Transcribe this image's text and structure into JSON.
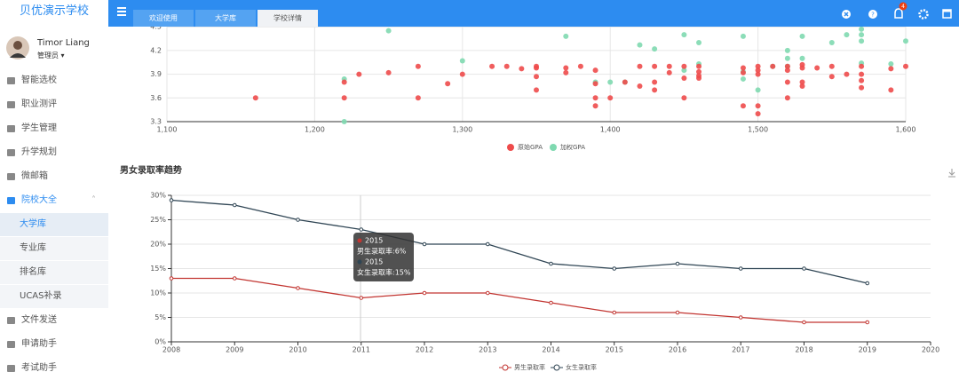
{
  "sidebar": {
    "logo": "贝优演示学校",
    "user": {
      "name": "Timor Liang",
      "role": "管理员"
    },
    "menu": [
      "智能选校",
      "职业测评",
      "学生管理",
      "升学规划",
      "微邮箱",
      "院校大全"
    ],
    "submenu": [
      "大学库",
      "专业库",
      "排名库",
      "UCAS补录"
    ],
    "menu_after": [
      "文件发送",
      "申请助手",
      "考试助手"
    ]
  },
  "header": {
    "tabs": [
      "欢迎使用",
      "大学库",
      "学校详情"
    ],
    "badge": "4"
  },
  "chart_data": [
    {
      "type": "scatter",
      "xlim": [
        1100,
        1600
      ],
      "ylim": [
        3.3,
        4.5
      ],
      "xticks": [
        {
          "value": 1100,
          "label": "1,100"
        },
        {
          "value": 1200,
          "label": "1,200"
        },
        {
          "value": 1300,
          "label": "1,300"
        },
        {
          "value": 1400,
          "label": "1,400"
        },
        {
          "value": 1500,
          "label": "1,500"
        },
        {
          "value": 1600,
          "label": "1,600"
        }
      ],
      "yticks": [
        3.3,
        3.6,
        3.9,
        4.2,
        4.5
      ],
      "grid": true,
      "legend": "bottom",
      "series": [
        {
          "name": "原始GPA",
          "color": "#ee4b4b",
          "x": [
            1160,
            1220,
            1220,
            1230,
            1250,
            1270,
            1270,
            1290,
            1300,
            1320,
            1330,
            1340,
            1350,
            1350,
            1350,
            1350,
            1370,
            1370,
            1380,
            1390,
            1390,
            1390,
            1390,
            1400,
            1410,
            1420,
            1420,
            1430,
            1430,
            1430,
            1440,
            1440,
            1450,
            1450,
            1450,
            1460,
            1460,
            1460,
            1460,
            1490,
            1490,
            1490,
            1500,
            1500,
            1500,
            1500,
            1500,
            1510,
            1520,
            1520,
            1520,
            1520,
            1530,
            1530,
            1530,
            1530,
            1540,
            1550,
            1550,
            1560,
            1570,
            1570,
            1570,
            1570,
            1590,
            1590,
            1600
          ],
          "values": [
            3.6,
            3.8,
            3.6,
            3.9,
            3.92,
            4.0,
            3.6,
            3.78,
            3.9,
            4.0,
            4.0,
            3.97,
            4.0,
            3.98,
            3.87,
            3.7,
            3.98,
            3.92,
            4.0,
            3.95,
            3.78,
            3.6,
            3.5,
            3.6,
            3.8,
            4.0,
            3.75,
            4.0,
            3.8,
            3.7,
            4.0,
            3.92,
            4.0,
            3.85,
            3.6,
            4.0,
            3.93,
            3.88,
            3.85,
            3.98,
            3.92,
            3.5,
            4.0,
            3.95,
            3.9,
            3.5,
            3.4,
            4.0,
            4.0,
            3.95,
            3.8,
            3.6,
            4.02,
            3.98,
            3.8,
            3.75,
            3.98,
            4.0,
            3.87,
            3.9,
            4.0,
            3.9,
            3.82,
            3.73,
            3.97,
            3.7,
            4.0
          ]
        },
        {
          "name": "加权GPA",
          "color": "#7fd9b0",
          "x": [
            1220,
            1220,
            1250,
            1300,
            1370,
            1390,
            1400,
            1410,
            1420,
            1430,
            1450,
            1450,
            1460,
            1460,
            1490,
            1490,
            1490,
            1500,
            1510,
            1520,
            1520,
            1520,
            1530,
            1530,
            1550,
            1560,
            1570,
            1570,
            1570,
            1570,
            1590,
            1600
          ],
          "values": [
            3.84,
            3.3,
            4.45,
            4.07,
            4.38,
            3.8,
            3.8,
            3.8,
            4.27,
            4.22,
            4.4,
            3.95,
            4.3,
            4.03,
            4.38,
            3.93,
            3.84,
            3.7,
            4.0,
            4.2,
            4.1,
            4.0,
            4.38,
            4.1,
            4.3,
            4.4,
            4.47,
            4.4,
            4.32,
            4.04,
            4.03,
            4.32
          ]
        }
      ]
    },
    {
      "type": "line",
      "title": "男女录取率趋势",
      "x": [
        2008,
        2009,
        2010,
        2011,
        2012,
        2013,
        2014,
        2015,
        2016,
        2017,
        2018,
        2019
      ],
      "xlim": [
        2008,
        2020
      ],
      "xticks": [
        2008,
        2009,
        2010,
        2011,
        2012,
        2013,
        2014,
        2015,
        2016,
        2017,
        2018,
        2019,
        2020
      ],
      "ylim": [
        0,
        30
      ],
      "yticks": [
        {
          "value": 0,
          "label": "0%"
        },
        {
          "value": 5,
          "label": "5%"
        },
        {
          "value": 10,
          "label": "10%"
        },
        {
          "value": 15,
          "label": "15%"
        },
        {
          "value": 20,
          "label": "20%"
        },
        {
          "value": 25,
          "label": "25%"
        },
        {
          "value": 30,
          "label": "30%"
        }
      ],
      "grid": true,
      "legend": "bottom",
      "series": [
        {
          "name": "男生录取率",
          "color": "#c23531",
          "values": [
            13,
            13,
            11,
            9,
            10,
            10,
            8,
            6,
            6,
            5,
            4,
            4
          ]
        },
        {
          "name": "女生录取率",
          "color": "#2f4554",
          "values": [
            29,
            28,
            25,
            23,
            20,
            20,
            16,
            15,
            16,
            15,
            15,
            12
          ]
        }
      ],
      "tooltip": [
        "2015",
        "男生录取率:6%",
        "2015",
        "女生录取率:15%"
      ]
    }
  ]
}
